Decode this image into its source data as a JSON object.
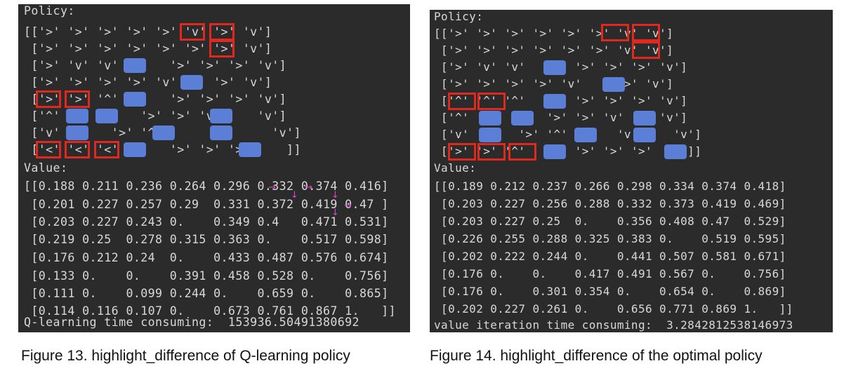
{
  "figure13": {
    "policy_header": "Policy:",
    "policy_rows": [
      "[['>' '>' '>' '>' '>' 'v' '>' 'v']",
      " ['>' '>' '>' '>' '>' '>' '>' 'v']",
      " ['>' 'v' 'v'       '>' '>' '>' 'v']",
      " ['>' '>' '>' '>' 'v'     '>' 'v']",
      " ['>' '>' '^'       '>' '>' '>' 'v']",
      " ['^'           '>' '>' 'v'     'v']",
      " ['v'       '>' '^'       'v'     'v']",
      " ['<' '<' '<'       '>' '>' '>'     ]]"
    ],
    "value_header": "Value:",
    "value_rows": [
      "[[0.188 0.211 0.236 0.264 0.296 0.332 0.374 0.416]",
      " [0.201 0.227 0.257 0.29  0.331 0.372 0.419 0.47 ]",
      " [0.203 0.227 0.243 0.    0.349 0.4   0.471 0.531]",
      " [0.219 0.25  0.278 0.315 0.363 0.    0.517 0.598]",
      " [0.176 0.212 0.24  0.    0.433 0.487 0.576 0.674]",
      " [0.133 0.    0.    0.391 0.458 0.528 0.    0.756]",
      " [0.111 0.    0.099 0.244 0.    0.659 0.    0.865]",
      " [0.114 0.116 0.107 0.    0.673 0.761 0.867 1.   ]]"
    ],
    "timing_line": "Q-learning time consuming:  153936.50491380692",
    "caption": "Figure 13. highlight_difference of Q-learning policy"
  },
  "figure14": {
    "policy_header": "Policy:",
    "policy_rows": [
      "[['>' '>' '>' '>' '>' '>' 'v' 'v']",
      " ['>' '>' '>' '>' '>' '>' 'v' 'v']",
      " ['>' 'v' 'v'       '>' '>' '>' 'v']",
      " ['>' '>' '>' '>' 'v'     '>' 'v']",
      " ['^' '^' '^'       '>' '>' '>' 'v']",
      " ['^'           '>' '>' 'v'     'v']",
      " ['v'       '>' '^'       'v'     'v']",
      " ['>' '>' '^'       '>' '>' '>'     ]]"
    ],
    "value_header": "Value:",
    "value_rows": [
      "[[0.189 0.212 0.237 0.266 0.298 0.334 0.374 0.418]",
      " [0.203 0.227 0.256 0.288 0.332 0.373 0.419 0.469]",
      " [0.203 0.227 0.25  0.    0.356 0.408 0.47  0.529]",
      " [0.226 0.255 0.288 0.325 0.383 0.    0.519 0.595]",
      " [0.202 0.222 0.244 0.    0.441 0.507 0.581 0.671]",
      " [0.176 0.    0.    0.417 0.491 0.567 0.    0.756]",
      " [0.176 0.    0.301 0.354 0.    0.654 0.    0.869]",
      " [0.202 0.227 0.261 0.    0.656 0.771 0.869 1.   ]]"
    ],
    "timing_line": "value iteration time consuming:  3.2842812538146973",
    "caption": "Figure 14. highlight_difference of the optimal policy"
  },
  "colors": {
    "panel_background": "#2b2b2b",
    "text": "#d8d8d8",
    "obstacle": "#5b7fd6",
    "highlight_box": "#e0281e",
    "value_arrows": "#e040d0"
  }
}
